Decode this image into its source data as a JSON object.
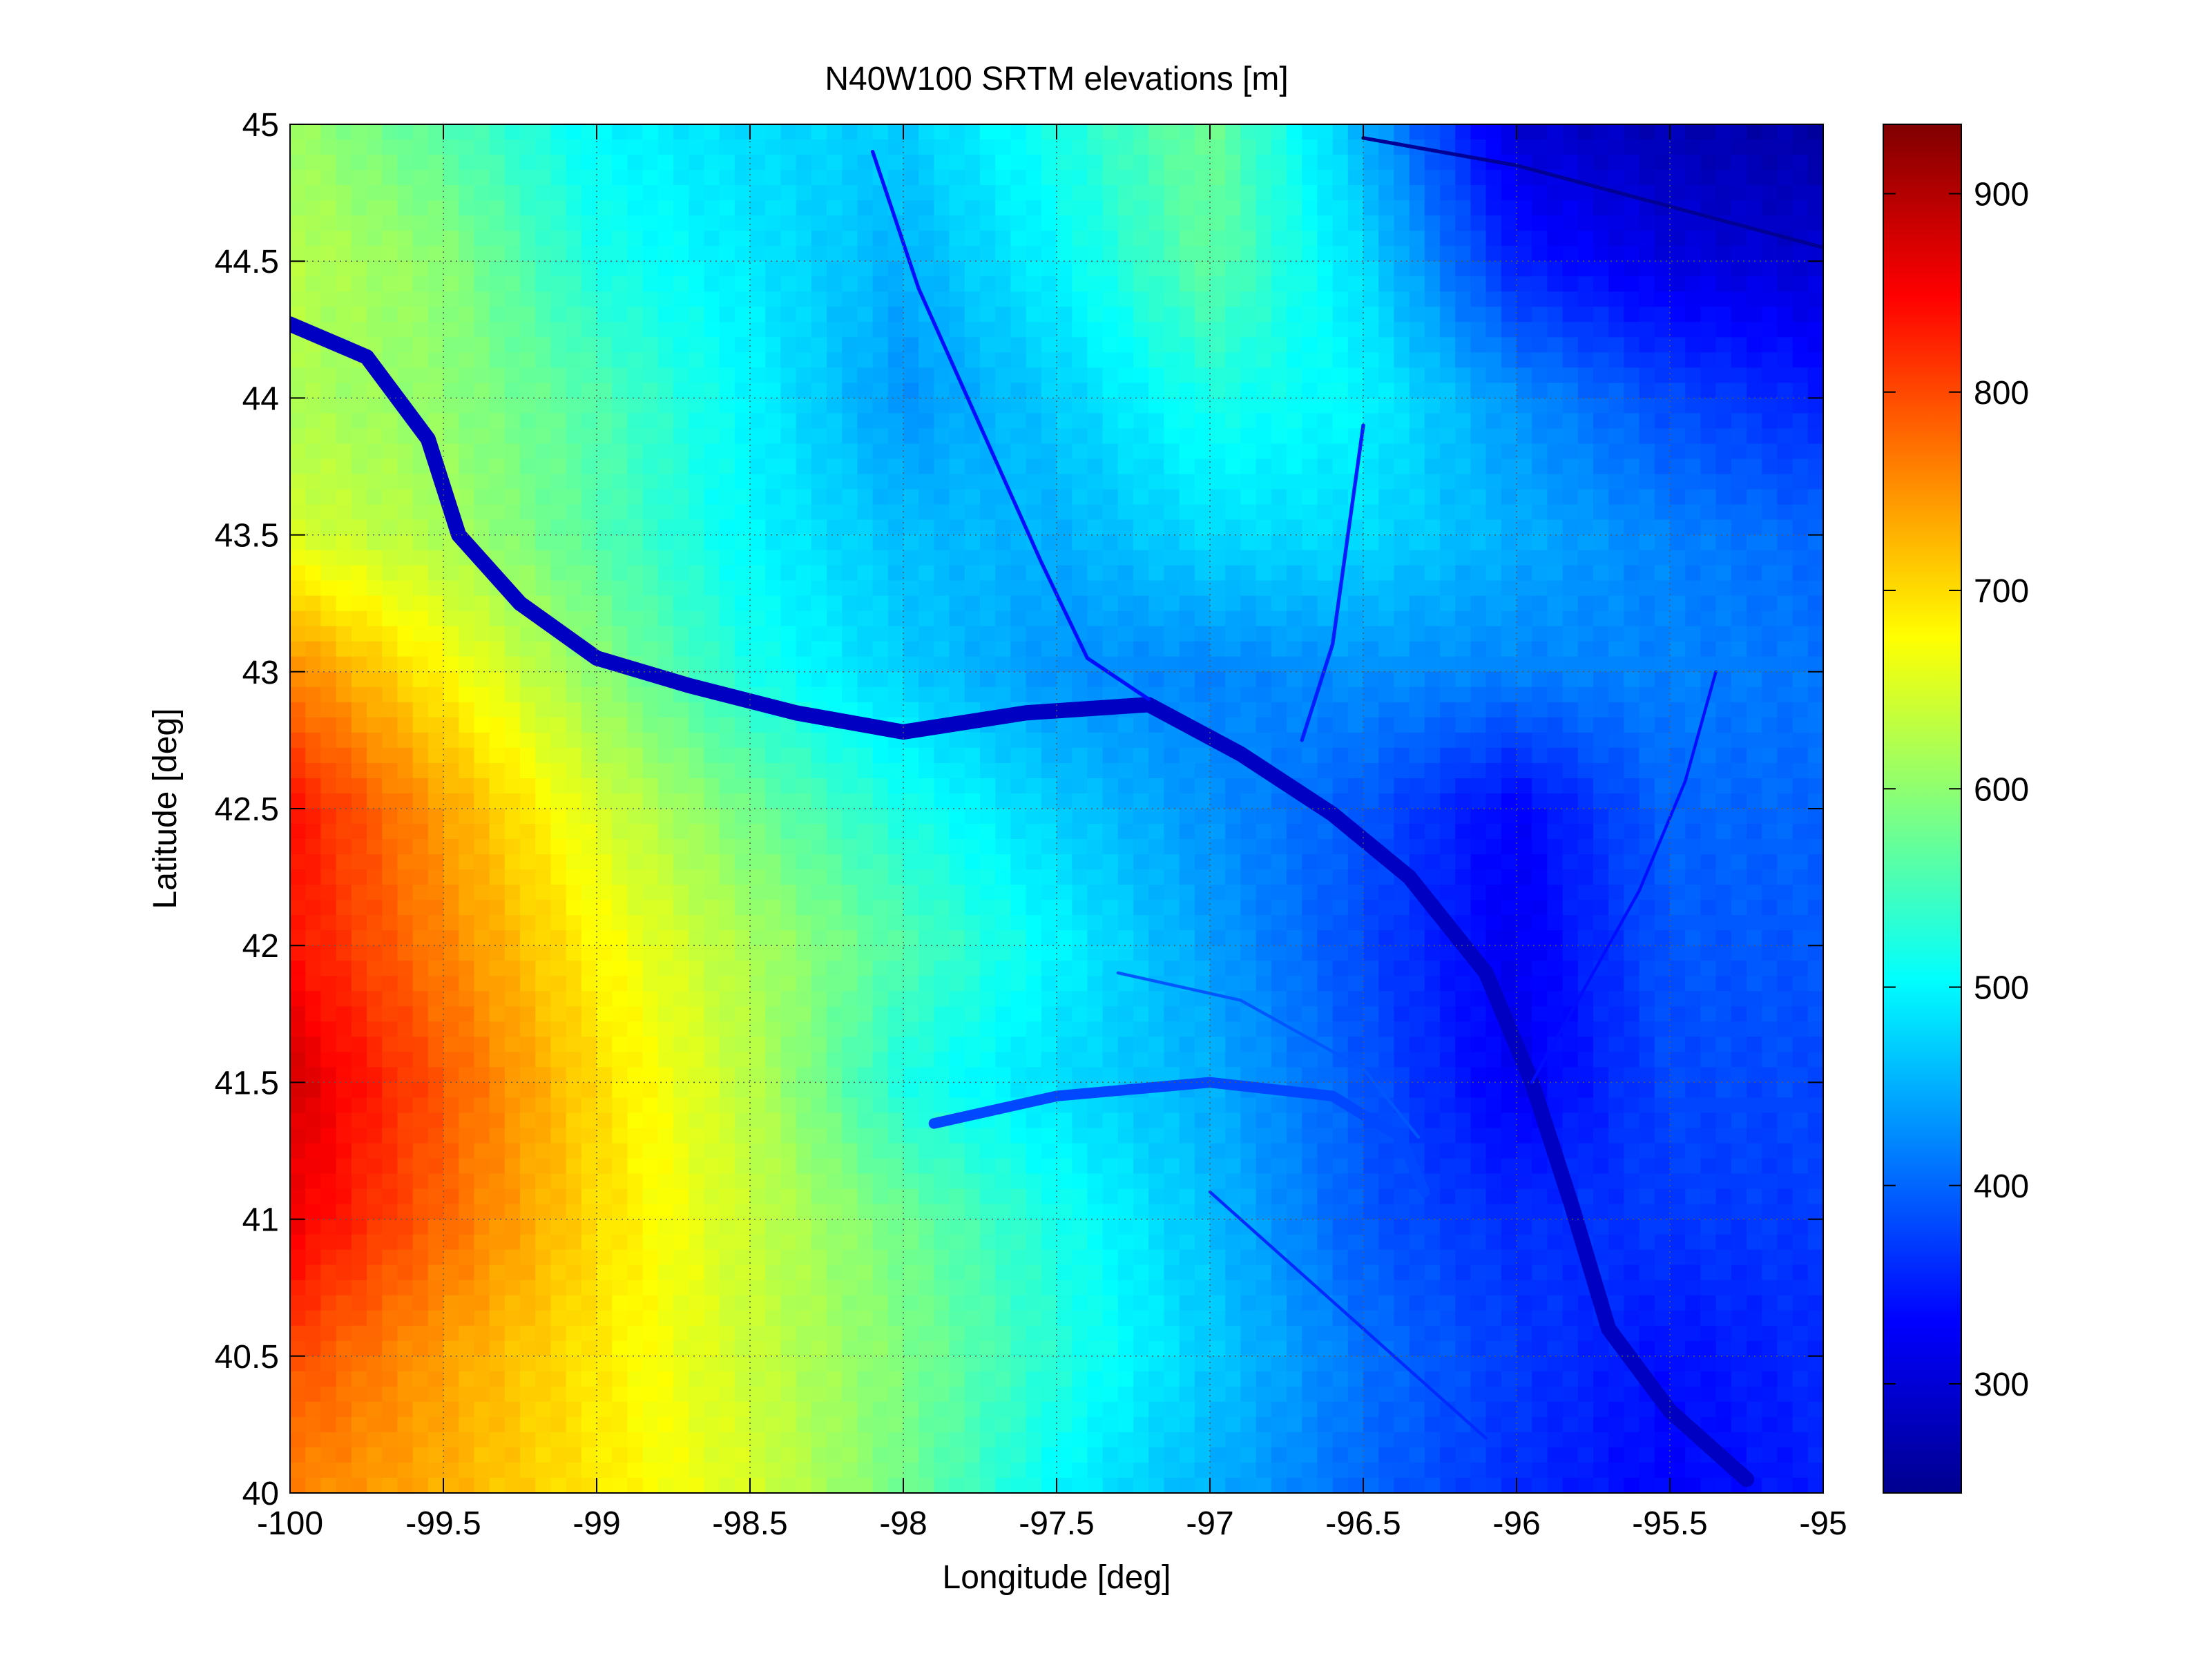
{
  "chart_data": {
    "type": "heatmap",
    "title": "N40W100 SRTM elevations [m]",
    "xlabel": "Longitude [deg]",
    "ylabel": "Latitude [deg]",
    "xlim": [
      -100,
      -95
    ],
    "ylim": [
      40,
      45
    ],
    "xticks": [
      "-100",
      "-99.5",
      "-99",
      "-98.5",
      "-98",
      "-97.5",
      "-97",
      "-96.5",
      "-96",
      "-95.5",
      "-95"
    ],
    "yticks": [
      "40",
      "40.5",
      "41",
      "41.5",
      "42",
      "42.5",
      "43",
      "43.5",
      "44",
      "44.5",
      "45"
    ],
    "grid": "dotted",
    "colormap": "jet",
    "colorbar": {
      "range": [
        245,
        935
      ],
      "ticks": [
        300,
        400,
        500,
        600,
        700,
        800,
        900
      ],
      "tick_labels": [
        "300",
        "400",
        "500",
        "600",
        "700",
        "800",
        "900"
      ]
    },
    "elevation_grid": {
      "lon": [
        -100,
        -99.5,
        -99,
        -98.5,
        -98,
        -97.5,
        -97,
        -96.5,
        -96,
        -95.5,
        -95
      ],
      "lat": [
        45,
        44.5,
        44,
        43.5,
        43,
        42.5,
        42,
        41.5,
        41,
        40.5,
        40
      ],
      "z": [
        [
          610,
          560,
          500,
          480,
          470,
          520,
          580,
          450,
          300,
          280,
          270
        ],
        [
          630,
          600,
          520,
          490,
          450,
          500,
          570,
          480,
          350,
          310,
          300
        ],
        [
          620,
          600,
          560,
          500,
          430,
          470,
          520,
          500,
          430,
          380,
          350
        ],
        [
          650,
          620,
          560,
          500,
          460,
          450,
          480,
          480,
          450,
          420,
          400
        ],
        [
          760,
          680,
          600,
          520,
          470,
          430,
          420,
          430,
          420,
          420,
          410
        ],
        [
          840,
          740,
          650,
          580,
          520,
          470,
          430,
          390,
          330,
          400,
          400
        ],
        [
          840,
          760,
          680,
          620,
          560,
          500,
          440,
          380,
          320,
          390,
          390
        ],
        [
          880,
          790,
          700,
          630,
          520,
          480,
          450,
          390,
          320,
          380,
          380
        ],
        [
          860,
          780,
          700,
          640,
          580,
          520,
          460,
          390,
          360,
          370,
          370
        ],
        [
          800,
          740,
          690,
          640,
          590,
          530,
          470,
          410,
          370,
          340,
          360
        ],
        [
          760,
          730,
          690,
          650,
          580,
          500,
          450,
          400,
          360,
          330,
          350
        ]
      ]
    },
    "rivers": [
      {
        "points": [
          [
            -100,
            44.27
          ],
          [
            -99.75,
            44.15
          ],
          [
            -99.55,
            43.85
          ],
          [
            -99.45,
            43.5
          ],
          [
            -99.25,
            43.25
          ],
          [
            -99.0,
            43.05
          ],
          [
            -98.7,
            42.95
          ],
          [
            -98.35,
            42.85
          ],
          [
            -98.0,
            42.78
          ],
          [
            -97.6,
            42.85
          ],
          [
            -97.2,
            42.88
          ],
          [
            -96.9,
            42.7
          ],
          [
            -96.6,
            42.48
          ],
          [
            -96.35,
            42.25
          ],
          [
            -96.1,
            41.9
          ],
          [
            -95.95,
            41.5
          ],
          [
            -95.82,
            41.05
          ],
          [
            -95.7,
            40.6
          ],
          [
            -95.5,
            40.3
          ],
          [
            -95.25,
            40.05
          ]
        ],
        "width": 0.05,
        "elevation": 290
      },
      {
        "points": [
          [
            -97.9,
            41.35
          ],
          [
            -97.5,
            41.45
          ],
          [
            -97.0,
            41.5
          ],
          [
            -96.6,
            41.45
          ],
          [
            -96.38,
            41.3
          ],
          [
            -96.3,
            41.1
          ]
        ],
        "width": 0.035,
        "elevation": 380
      },
      {
        "points": [
          [
            -98.1,
            44.9
          ],
          [
            -97.95,
            44.4
          ],
          [
            -97.75,
            43.9
          ],
          [
            -97.55,
            43.4
          ],
          [
            -97.4,
            43.05
          ],
          [
            -97.2,
            42.9
          ]
        ],
        "width": 0.012,
        "elevation": 340
      },
      {
        "points": [
          [
            -96.5,
            43.9
          ],
          [
            -96.55,
            43.5
          ],
          [
            -96.6,
            43.1
          ],
          [
            -96.7,
            42.75
          ]
        ],
        "width": 0.012,
        "elevation": 350
      },
      {
        "points": [
          [
            -97.3,
            41.9
          ],
          [
            -96.9,
            41.8
          ],
          [
            -96.5,
            41.55
          ],
          [
            -96.32,
            41.3
          ]
        ],
        "width": 0.01,
        "elevation": 390
      },
      {
        "points": [
          [
            -95.35,
            43.0
          ],
          [
            -95.45,
            42.6
          ],
          [
            -95.6,
            42.2
          ],
          [
            -95.8,
            41.8
          ],
          [
            -95.95,
            41.5
          ]
        ],
        "width": 0.01,
        "elevation": 340
      },
      {
        "points": [
          [
            -96.5,
            44.95
          ],
          [
            -96.0,
            44.85
          ],
          [
            -95.5,
            44.7
          ],
          [
            -95.0,
            44.55
          ]
        ],
        "width": 0.012,
        "elevation": 260
      },
      {
        "points": [
          [
            -97.0,
            41.1
          ],
          [
            -96.7,
            40.8
          ],
          [
            -96.4,
            40.5
          ],
          [
            -96.1,
            40.2
          ]
        ],
        "width": 0.01,
        "elevation": 360
      }
    ]
  }
}
